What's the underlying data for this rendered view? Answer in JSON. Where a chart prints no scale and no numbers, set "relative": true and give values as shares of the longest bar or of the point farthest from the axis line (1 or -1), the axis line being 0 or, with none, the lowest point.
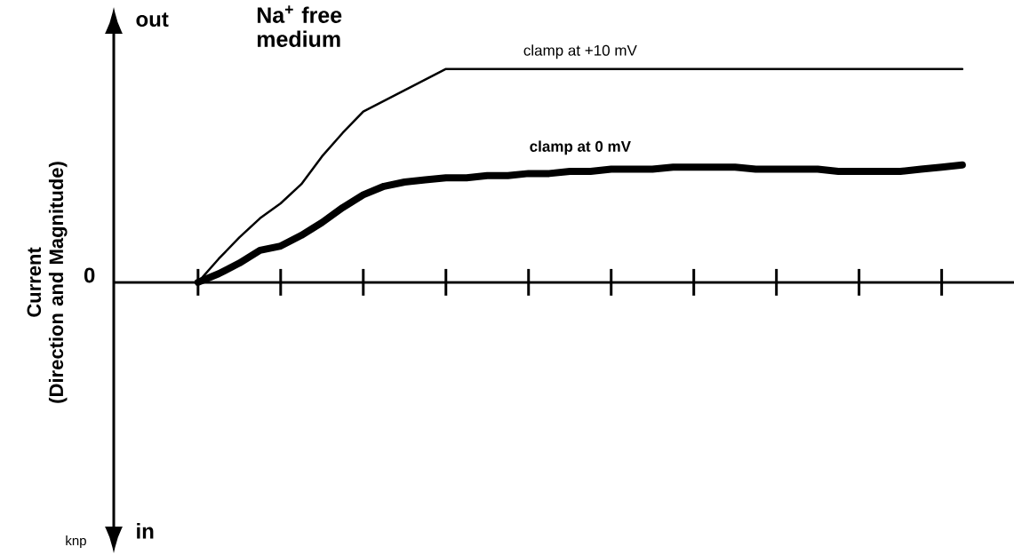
{
  "chart_data": {
    "type": "line",
    "relative": true,
    "categories": [
      null,
      null,
      null,
      null,
      null,
      null,
      null,
      null,
      null,
      null,
      null,
      null,
      null,
      null,
      null,
      null,
      null,
      null,
      null,
      null,
      null,
      null,
      null,
      null,
      null,
      null,
      null,
      null,
      null,
      null,
      null,
      null,
      null,
      null,
      null,
      null,
      null,
      null,
      null
    ],
    "annotations": [
      "out",
      "in",
      "0",
      "Na$^{+}$ free medium",
      "knp",
      "Current (Direction and Magnitude)"
    ],
    "marker": "none",
    "line_style": "solid",
    "series": [
      {
        "name": "clamp at +10 mV",
        "color": "#000000",
        "values": [
          0,
          0.11,
          0.21,
          0.3,
          0.37,
          0.46,
          0.59,
          0.7,
          0.8,
          0.85,
          0.9,
          0.95,
          1,
          1,
          1,
          1,
          1,
          1,
          1,
          1,
          1,
          1,
          1,
          1,
          1,
          1,
          1,
          1,
          1,
          1,
          1,
          1,
          1,
          1,
          1,
          1,
          1,
          1,
          null
        ]
      },
      {
        "name": "clamp at 0 mV",
        "color": "#000000",
        "values": [
          0,
          0.04,
          0.09,
          0.15,
          0.17,
          0.22,
          0.28,
          0.35,
          0.41,
          0.45,
          0.47,
          0.48,
          0.49,
          0.49,
          0.5,
          0.5,
          0.51,
          0.51,
          0.52,
          0.52,
          0.53,
          0.53,
          0.53,
          0.54,
          0.54,
          0.54,
          0.54,
          0.53,
          0.53,
          0.53,
          0.53,
          0.52,
          0.52,
          0.52,
          0.52,
          0.53,
          0.54,
          0.55,
          null
        ]
      }
    ]
  }
}
